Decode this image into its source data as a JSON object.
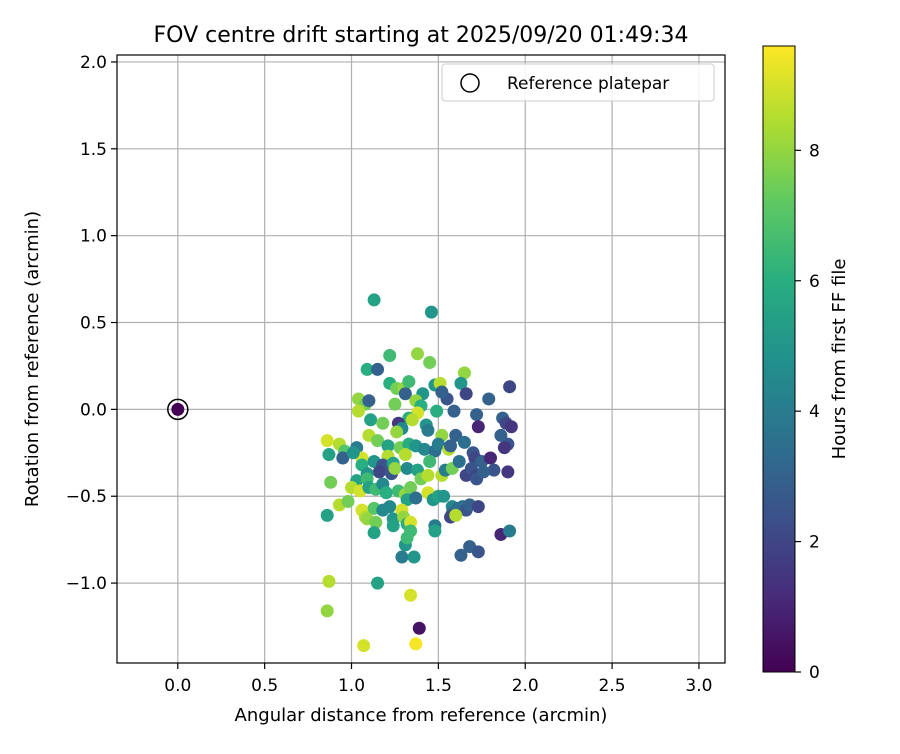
{
  "chart_data": {
    "type": "scatter",
    "title": "FOV centre drift starting at 2025/09/20 01:49:34",
    "xlabel": "Angular distance from reference (arcmin)",
    "ylabel": "Rotation from reference (arcmin)",
    "xlim": [
      -0.35,
      3.15
    ],
    "ylim": [
      -1.46,
      2.04
    ],
    "xticks": [
      0.0,
      0.5,
      1.0,
      1.5,
      2.0,
      2.5,
      3.0
    ],
    "xtick_labels": [
      "0.0",
      "0.5",
      "1.0",
      "1.5",
      "2.0",
      "2.5",
      "3.0"
    ],
    "yticks": [
      -1.0,
      -0.5,
      0.0,
      0.5,
      1.0,
      1.5,
      2.0
    ],
    "ytick_labels": [
      "−1.0",
      "−0.5",
      "0.0",
      "0.5",
      "1.0",
      "1.5",
      "2.0"
    ],
    "grid": true,
    "legend": {
      "position": "top-right",
      "entries": [
        "Reference platepar"
      ]
    },
    "reference_point": {
      "x": 0.0,
      "y": 0.0,
      "hours": 0.0
    },
    "colorbar": {
      "label": "Hours from first FF file",
      "range": [
        0,
        9.6
      ],
      "ticks": [
        0,
        2,
        4,
        6,
        8
      ],
      "tick_labels": [
        "0",
        "2",
        "4",
        "6",
        "8"
      ],
      "colormap": "viridis"
    },
    "points": [
      {
        "x": 1.13,
        "y": 0.63,
        "h": 5.5
      },
      {
        "x": 1.46,
        "y": 0.56,
        "h": 5.0
      },
      {
        "x": 1.09,
        "y": 0.23,
        "h": 6.0
      },
      {
        "x": 1.15,
        "y": 0.23,
        "h": 3.0
      },
      {
        "x": 1.22,
        "y": 0.31,
        "h": 6.5
      },
      {
        "x": 1.38,
        "y": 0.32,
        "h": 8.0
      },
      {
        "x": 1.45,
        "y": 0.27,
        "h": 7.5
      },
      {
        "x": 1.65,
        "y": 0.21,
        "h": 8.0
      },
      {
        "x": 1.22,
        "y": 0.15,
        "h": 6.0
      },
      {
        "x": 1.26,
        "y": 0.12,
        "h": 7.5
      },
      {
        "x": 1.3,
        "y": 0.12,
        "h": 8.0
      },
      {
        "x": 1.31,
        "y": 0.09,
        "h": 3.0
      },
      {
        "x": 1.33,
        "y": 0.16,
        "h": 6.5
      },
      {
        "x": 1.48,
        "y": 0.14,
        "h": 5.0
      },
      {
        "x": 1.51,
        "y": 0.15,
        "h": 8.5
      },
      {
        "x": 1.63,
        "y": 0.15,
        "h": 5.0
      },
      {
        "x": 1.66,
        "y": 0.09,
        "h": 2.0
      },
      {
        "x": 1.55,
        "y": 0.06,
        "h": 2.5
      },
      {
        "x": 1.52,
        "y": 0.1,
        "h": 3.0
      },
      {
        "x": 1.41,
        "y": 0.09,
        "h": 5.0
      },
      {
        "x": 1.37,
        "y": 0.05,
        "h": 8.0
      },
      {
        "x": 1.25,
        "y": 0.03,
        "h": 7.5
      },
      {
        "x": 1.04,
        "y": 0.06,
        "h": 8.0
      },
      {
        "x": 1.08,
        "y": 0.03,
        "h": 7.5
      },
      {
        "x": 1.04,
        "y": -0.01,
        "h": 8.5
      },
      {
        "x": 1.1,
        "y": 0.05,
        "h": 3.0
      },
      {
        "x": 1.59,
        "y": -0.01,
        "h": 3.0
      },
      {
        "x": 1.49,
        "y": -0.01,
        "h": 6.0
      },
      {
        "x": 1.4,
        "y": 0.02,
        "h": 6.0
      },
      {
        "x": 1.38,
        "y": -0.02,
        "h": 9.0
      },
      {
        "x": 1.72,
        "y": -0.03,
        "h": 3.0
      },
      {
        "x": 1.79,
        "y": 0.06,
        "h": 3.0
      },
      {
        "x": 1.91,
        "y": 0.13,
        "h": 2.0
      },
      {
        "x": 1.87,
        "y": -0.05,
        "h": 3.0
      },
      {
        "x": 1.89,
        "y": -0.08,
        "h": 2.0
      },
      {
        "x": 1.92,
        "y": -0.1,
        "h": 1.5
      },
      {
        "x": 1.73,
        "y": -0.1,
        "h": 1.0
      },
      {
        "x": 1.11,
        "y": -0.06,
        "h": 5.5
      },
      {
        "x": 1.18,
        "y": -0.08,
        "h": 7.5
      },
      {
        "x": 1.33,
        "y": -0.05,
        "h": 6.0
      },
      {
        "x": 1.35,
        "y": -0.06,
        "h": 8.5
      },
      {
        "x": 1.27,
        "y": -0.08,
        "h": 1.5
      },
      {
        "x": 1.29,
        "y": -0.11,
        "h": 4.5
      },
      {
        "x": 1.43,
        "y": -0.09,
        "h": 5.0
      },
      {
        "x": 1.44,
        "y": -0.12,
        "h": 4.0
      },
      {
        "x": 1.6,
        "y": -0.15,
        "h": 3.0
      },
      {
        "x": 1.65,
        "y": -0.19,
        "h": 3.5
      },
      {
        "x": 1.52,
        "y": -0.15,
        "h": 8.0
      },
      {
        "x": 1.26,
        "y": -0.13,
        "h": 8.0
      },
      {
        "x": 1.1,
        "y": -0.15,
        "h": 8.5
      },
      {
        "x": 1.15,
        "y": -0.18,
        "h": 7.5
      },
      {
        "x": 1.21,
        "y": -0.21,
        "h": 5.5
      },
      {
        "x": 1.28,
        "y": -0.22,
        "h": 7.5
      },
      {
        "x": 1.33,
        "y": -0.2,
        "h": 6.0
      },
      {
        "x": 1.31,
        "y": -0.26,
        "h": 8.5
      },
      {
        "x": 1.37,
        "y": -0.21,
        "h": 5.0
      },
      {
        "x": 1.42,
        "y": -0.23,
        "h": 4.5
      },
      {
        "x": 1.48,
        "y": -0.24,
        "h": 3.5
      },
      {
        "x": 1.5,
        "y": -0.2,
        "h": 4.0
      },
      {
        "x": 1.56,
        "y": -0.23,
        "h": 8.5
      },
      {
        "x": 1.57,
        "y": -0.21,
        "h": 3.0
      },
      {
        "x": 1.7,
        "y": -0.25,
        "h": 2.5
      },
      {
        "x": 1.71,
        "y": -0.28,
        "h": 2.0
      },
      {
        "x": 1.75,
        "y": -0.3,
        "h": 3.0
      },
      {
        "x": 1.8,
        "y": -0.28,
        "h": 1.0
      },
      {
        "x": 1.82,
        "y": -0.35,
        "h": 2.5
      },
      {
        "x": 1.9,
        "y": -0.2,
        "h": 2.5
      },
      {
        "x": 1.88,
        "y": -0.22,
        "h": 1.5
      },
      {
        "x": 1.86,
        "y": -0.15,
        "h": 3.0
      },
      {
        "x": 1.9,
        "y": -0.36,
        "h": 1.5
      },
      {
        "x": 0.86,
        "y": -0.18,
        "h": 9.0
      },
      {
        "x": 0.93,
        "y": -0.2,
        "h": 8.5
      },
      {
        "x": 0.96,
        "y": -0.24,
        "h": 7.0
      },
      {
        "x": 0.87,
        "y": -0.26,
        "h": 5.5
      },
      {
        "x": 0.95,
        "y": -0.28,
        "h": 3.0
      },
      {
        "x": 1.03,
        "y": -0.22,
        "h": 4.0
      },
      {
        "x": 1.06,
        "y": -0.28,
        "h": 9.0
      },
      {
        "x": 1.01,
        "y": -0.25,
        "h": 5.0
      },
      {
        "x": 1.06,
        "y": -0.32,
        "h": 6.0
      },
      {
        "x": 1.13,
        "y": -0.3,
        "h": 5.0
      },
      {
        "x": 1.21,
        "y": -0.27,
        "h": 8.5
      },
      {
        "x": 1.18,
        "y": -0.32,
        "h": 2.5
      },
      {
        "x": 1.24,
        "y": -0.31,
        "h": 5.5
      },
      {
        "x": 1.16,
        "y": -0.36,
        "h": 2.0
      },
      {
        "x": 1.09,
        "y": -0.37,
        "h": 5.0
      },
      {
        "x": 1.03,
        "y": -0.41,
        "h": 5.5
      },
      {
        "x": 1.09,
        "y": -0.4,
        "h": 6.5
      },
      {
        "x": 1.23,
        "y": -0.37,
        "h": 2.5
      },
      {
        "x": 1.25,
        "y": -0.34,
        "h": 8.0
      },
      {
        "x": 1.32,
        "y": -0.34,
        "h": 4.5
      },
      {
        "x": 1.38,
        "y": -0.35,
        "h": 5.5
      },
      {
        "x": 1.4,
        "y": -0.4,
        "h": 7.5
      },
      {
        "x": 1.44,
        "y": -0.38,
        "h": 8.5
      },
      {
        "x": 1.45,
        "y": -0.3,
        "h": 6.5
      },
      {
        "x": 1.52,
        "y": -0.38,
        "h": 8.5
      },
      {
        "x": 1.54,
        "y": -0.35,
        "h": 4.0
      },
      {
        "x": 1.58,
        "y": -0.34,
        "h": 7.5
      },
      {
        "x": 1.62,
        "y": -0.3,
        "h": 3.5
      },
      {
        "x": 1.66,
        "y": -0.38,
        "h": 2.0
      },
      {
        "x": 1.69,
        "y": -0.34,
        "h": 2.5
      },
      {
        "x": 1.72,
        "y": -0.38,
        "h": 2.0
      },
      {
        "x": 1.72,
        "y": -0.4,
        "h": 2.5
      },
      {
        "x": 1.76,
        "y": -0.36,
        "h": 3.0
      },
      {
        "x": 0.88,
        "y": -0.42,
        "h": 7.5
      },
      {
        "x": 1.0,
        "y": -0.45,
        "h": 8.5
      },
      {
        "x": 1.05,
        "y": -0.47,
        "h": 9.0
      },
      {
        "x": 1.1,
        "y": -0.45,
        "h": 5.5
      },
      {
        "x": 1.14,
        "y": -0.46,
        "h": 6.5
      },
      {
        "x": 1.18,
        "y": -0.43,
        "h": 4.5
      },
      {
        "x": 1.2,
        "y": -0.48,
        "h": 6.0
      },
      {
        "x": 1.27,
        "y": -0.47,
        "h": 6.5
      },
      {
        "x": 1.31,
        "y": -0.49,
        "h": 8.0
      },
      {
        "x": 1.34,
        "y": -0.45,
        "h": 7.5
      },
      {
        "x": 1.32,
        "y": -0.52,
        "h": 5.5
      },
      {
        "x": 1.37,
        "y": -0.51,
        "h": 3.5
      },
      {
        "x": 1.44,
        "y": -0.48,
        "h": 9.0
      },
      {
        "x": 1.47,
        "y": -0.52,
        "h": 5.0
      },
      {
        "x": 1.5,
        "y": -0.5,
        "h": 5.5
      },
      {
        "x": 1.53,
        "y": -0.5,
        "h": 5.0
      },
      {
        "x": 1.58,
        "y": -0.56,
        "h": 4.5
      },
      {
        "x": 1.58,
        "y": -0.6,
        "h": 3.0
      },
      {
        "x": 1.61,
        "y": -0.57,
        "h": 3.5
      },
      {
        "x": 1.64,
        "y": -0.56,
        "h": 3.5
      },
      {
        "x": 1.66,
        "y": -0.58,
        "h": 2.5
      },
      {
        "x": 1.68,
        "y": -0.55,
        "h": 3.0
      },
      {
        "x": 1.73,
        "y": -0.56,
        "h": 2.0
      },
      {
        "x": 1.57,
        "y": -0.62,
        "h": 2.0
      },
      {
        "x": 0.93,
        "y": -0.55,
        "h": 8.5
      },
      {
        "x": 0.98,
        "y": -0.53,
        "h": 7.5
      },
      {
        "x": 1.06,
        "y": -0.58,
        "h": 9.0
      },
      {
        "x": 1.08,
        "y": -0.62,
        "h": 8.5
      },
      {
        "x": 1.13,
        "y": -0.57,
        "h": 7.0
      },
      {
        "x": 1.09,
        "y": -0.63,
        "h": 8.0
      },
      {
        "x": 1.14,
        "y": -0.65,
        "h": 7.5
      },
      {
        "x": 1.18,
        "y": -0.58,
        "h": 4.5
      },
      {
        "x": 1.22,
        "y": -0.56,
        "h": 4.5
      },
      {
        "x": 1.24,
        "y": -0.63,
        "h": 5.0
      },
      {
        "x": 1.24,
        "y": -0.67,
        "h": 5.5
      },
      {
        "x": 1.29,
        "y": -0.58,
        "h": 9.0
      },
      {
        "x": 1.3,
        "y": -0.62,
        "h": 8.0
      },
      {
        "x": 1.32,
        "y": -0.66,
        "h": 6.0
      },
      {
        "x": 1.34,
        "y": -0.65,
        "h": 9.0
      },
      {
        "x": 1.34,
        "y": -0.7,
        "h": 6.5
      },
      {
        "x": 1.48,
        "y": -0.67,
        "h": 4.0
      },
      {
        "x": 1.48,
        "y": -0.7,
        "h": 5.5
      },
      {
        "x": 0.86,
        "y": -0.61,
        "h": 5.5
      },
      {
        "x": 1.13,
        "y": -0.71,
        "h": 5.5
      },
      {
        "x": 1.31,
        "y": -0.78,
        "h": 5.0
      },
      {
        "x": 1.32,
        "y": -0.74,
        "h": 6.5
      },
      {
        "x": 1.29,
        "y": -0.85,
        "h": 4.0
      },
      {
        "x": 1.36,
        "y": -0.85,
        "h": 5.0
      },
      {
        "x": 1.63,
        "y": -0.84,
        "h": 3.0
      },
      {
        "x": 1.68,
        "y": -0.79,
        "h": 3.0
      },
      {
        "x": 1.73,
        "y": -0.82,
        "h": 2.5
      },
      {
        "x": 1.86,
        "y": -0.72,
        "h": 1.0
      },
      {
        "x": 1.91,
        "y": -0.7,
        "h": 4.0
      },
      {
        "x": 1.6,
        "y": -0.61,
        "h": 8.5
      },
      {
        "x": 0.87,
        "y": -0.99,
        "h": 8.5
      },
      {
        "x": 1.15,
        "y": -1.0,
        "h": 5.5
      },
      {
        "x": 0.86,
        "y": -1.16,
        "h": 8.0
      },
      {
        "x": 1.34,
        "y": -1.07,
        "h": 9.0
      },
      {
        "x": 1.39,
        "y": -1.26,
        "h": 0.5
      },
      {
        "x": 1.07,
        "y": -1.36,
        "h": 9.0
      },
      {
        "x": 1.37,
        "y": -1.35,
        "h": 9.5
      }
    ]
  }
}
